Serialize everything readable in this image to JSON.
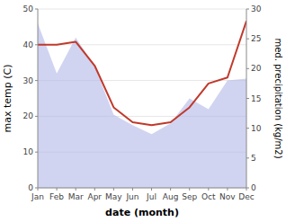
{
  "chart_data": {
    "type": "area",
    "xlabel": "date (month)",
    "ylabel": "max temp (C)",
    "y2label": "med. precipitation (kg/m2)",
    "categories": [
      "Jan",
      "Feb",
      "Mar",
      "Apr",
      "May",
      "Jun",
      "Jul",
      "Aug",
      "Sep",
      "Oct",
      "Nov",
      "Dec"
    ],
    "series": [
      {
        "type": "area",
        "color": "#b0b8e8",
        "values": [
          46.0,
          32.0,
          42.0,
          34.0,
          20.5,
          17.5,
          15.0,
          18.0,
          25.0,
          22.0,
          30.0,
          30.5
        ]
      },
      {
        "type": "line",
        "color": "#c0392b",
        "axis": "y2",
        "values": [
          24.0,
          24.0,
          24.5,
          20.5,
          13.5,
          11.0,
          10.5,
          11.0,
          13.5,
          17.5,
          18.5,
          28.0
        ]
      }
    ],
    "ylim": [
      0,
      50
    ],
    "yticks": [
      0,
      10,
      20,
      30,
      40,
      50
    ],
    "y2lim": [
      0,
      30
    ],
    "y2ticks": [
      0,
      5,
      10,
      15,
      20,
      25,
      30
    ],
    "grid": true
  }
}
